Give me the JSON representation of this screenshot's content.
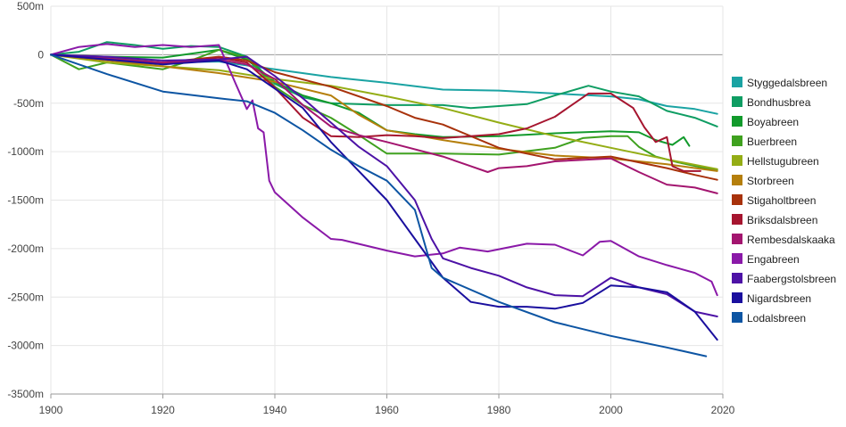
{
  "chart_data": {
    "type": "line",
    "title": "",
    "xlabel": "",
    "ylabel": "",
    "xlim": [
      1900,
      2020
    ],
    "ylim": [
      -3500,
      500
    ],
    "x_ticks": [
      "1900",
      "1920",
      "1940",
      "1960",
      "1980",
      "2000",
      "2020"
    ],
    "y_ticks": [
      "500m",
      "0",
      "-500m",
      "-1000m",
      "-1500m",
      "-2000m",
      "-2500m",
      "-3000m",
      "-3500m"
    ],
    "legend_position": "right",
    "grid": true,
    "series": [
      {
        "name": "Styggedalsbreen",
        "color": "#1aa3a3",
        "points": [
          [
            1900,
            0
          ],
          [
            1910,
            -30
          ],
          [
            1920,
            -80
          ],
          [
            1930,
            -70
          ],
          [
            1940,
            -150
          ],
          [
            1950,
            -230
          ],
          [
            1960,
            -290
          ],
          [
            1970,
            -360
          ],
          [
            1980,
            -370
          ],
          [
            1990,
            -400
          ],
          [
            2000,
            -430
          ],
          [
            2005,
            -460
          ],
          [
            2010,
            -530
          ],
          [
            2015,
            -560
          ],
          [
            2019,
            -610
          ]
        ]
      },
      {
        "name": "Bondhusbrea",
        "color": "#0f9d63",
        "points": [
          [
            1900,
            0
          ],
          [
            1905,
            30
          ],
          [
            1910,
            130
          ],
          [
            1915,
            100
          ],
          [
            1920,
            60
          ],
          [
            1925,
            90
          ],
          [
            1930,
            80
          ],
          [
            1935,
            -20
          ],
          [
            1940,
            -300
          ],
          [
            1945,
            -440
          ],
          [
            1950,
            -500
          ],
          [
            1960,
            -520
          ],
          [
            1970,
            -520
          ],
          [
            1975,
            -550
          ],
          [
            1980,
            -530
          ],
          [
            1985,
            -510
          ],
          [
            1990,
            -420
          ],
          [
            1996,
            -320
          ],
          [
            2000,
            -380
          ],
          [
            2005,
            -430
          ],
          [
            2010,
            -580
          ],
          [
            2015,
            -650
          ],
          [
            2019,
            -740
          ]
        ]
      },
      {
        "name": "Boyabreen",
        "color": "#129a2c",
        "points": [
          [
            1900,
            0
          ],
          [
            1910,
            -20
          ],
          [
            1920,
            -30
          ],
          [
            1930,
            50
          ],
          [
            1935,
            -50
          ],
          [
            1940,
            -280
          ],
          [
            1945,
            -420
          ],
          [
            1950,
            -500
          ],
          [
            1955,
            -600
          ],
          [
            1960,
            -780
          ],
          [
            1965,
            -820
          ],
          [
            1970,
            -850
          ],
          [
            1980,
            -840
          ],
          [
            1990,
            -810
          ],
          [
            2000,
            -790
          ],
          [
            2005,
            -800
          ],
          [
            2008,
            -880
          ],
          [
            2011,
            -930
          ],
          [
            2013,
            -850
          ],
          [
            2014,
            -940
          ]
        ]
      },
      {
        "name": "Buerbreen",
        "color": "#3fa11f",
        "points": [
          [
            1900,
            0
          ],
          [
            1905,
            -150
          ],
          [
            1910,
            -80
          ],
          [
            1920,
            -150
          ],
          [
            1925,
            -60
          ],
          [
            1930,
            50
          ],
          [
            1935,
            -30
          ],
          [
            1940,
            -330
          ],
          [
            1945,
            -520
          ],
          [
            1950,
            -650
          ],
          [
            1955,
            -830
          ],
          [
            1960,
            -1020
          ],
          [
            1970,
            -1020
          ],
          [
            1980,
            -1030
          ],
          [
            1990,
            -960
          ],
          [
            1995,
            -860
          ],
          [
            2000,
            -840
          ],
          [
            2003,
            -840
          ],
          [
            2005,
            -950
          ],
          [
            2008,
            -1050
          ],
          [
            2012,
            -1110
          ],
          [
            2016,
            -1160
          ],
          [
            2019,
            -1190
          ]
        ]
      },
      {
        "name": "Hellstugubreen",
        "color": "#94ad15",
        "points": [
          [
            1900,
            0
          ],
          [
            1910,
            -80
          ],
          [
            1920,
            -120
          ],
          [
            1930,
            -160
          ],
          [
            1940,
            -250
          ],
          [
            1950,
            -320
          ],
          [
            1960,
            -430
          ],
          [
            1970,
            -550
          ],
          [
            1980,
            -700
          ],
          [
            1990,
            -840
          ],
          [
            2000,
            -960
          ],
          [
            2010,
            -1080
          ],
          [
            2019,
            -1180
          ]
        ]
      },
      {
        "name": "Storbreen",
        "color": "#b57f0c",
        "points": [
          [
            1900,
            0
          ],
          [
            1910,
            -60
          ],
          [
            1920,
            -120
          ],
          [
            1930,
            -190
          ],
          [
            1940,
            -280
          ],
          [
            1950,
            -420
          ],
          [
            1955,
            -620
          ],
          [
            1960,
            -780
          ],
          [
            1970,
            -880
          ],
          [
            1980,
            -970
          ],
          [
            1990,
            -1040
          ],
          [
            2000,
            -1070
          ],
          [
            2010,
            -1130
          ],
          [
            2019,
            -1200
          ]
        ]
      },
      {
        "name": "Stigaholtbreen",
        "color": "#a8320b",
        "points": [
          [
            1900,
            0
          ],
          [
            1910,
            -40
          ],
          [
            1920,
            -80
          ],
          [
            1930,
            -20
          ],
          [
            1935,
            -60
          ],
          [
            1940,
            -180
          ],
          [
            1950,
            -330
          ],
          [
            1960,
            -530
          ],
          [
            1965,
            -650
          ],
          [
            1970,
            -720
          ],
          [
            1980,
            -960
          ],
          [
            1990,
            -1080
          ],
          [
            2000,
            -1050
          ],
          [
            2005,
            -1110
          ],
          [
            2010,
            -1170
          ],
          [
            2015,
            -1240
          ],
          [
            2019,
            -1290
          ]
        ]
      },
      {
        "name": "Briksdalsbreen",
        "color": "#a6152f",
        "points": [
          [
            1900,
            0
          ],
          [
            1910,
            -50
          ],
          [
            1920,
            -90
          ],
          [
            1930,
            -30
          ],
          [
            1935,
            -80
          ],
          [
            1940,
            -340
          ],
          [
            1945,
            -650
          ],
          [
            1950,
            -840
          ],
          [
            1955,
            -850
          ],
          [
            1960,
            -830
          ],
          [
            1965,
            -840
          ],
          [
            1970,
            -860
          ],
          [
            1975,
            -840
          ],
          [
            1980,
            -820
          ],
          [
            1985,
            -760
          ],
          [
            1990,
            -640
          ],
          [
            1996,
            -400
          ],
          [
            2000,
            -400
          ],
          [
            2004,
            -550
          ],
          [
            2006,
            -750
          ],
          [
            2008,
            -900
          ],
          [
            2010,
            -850
          ],
          [
            2011,
            -1150
          ],
          [
            2013,
            -1200
          ],
          [
            2016,
            -1200
          ]
        ]
      },
      {
        "name": "Rembesdalskaaka",
        "color": "#a3156f",
        "points": [
          [
            1900,
            0
          ],
          [
            1910,
            -40
          ],
          [
            1920,
            -80
          ],
          [
            1930,
            -50
          ],
          [
            1935,
            -100
          ],
          [
            1940,
            -250
          ],
          [
            1945,
            -520
          ],
          [
            1950,
            -740
          ],
          [
            1955,
            -830
          ],
          [
            1960,
            -900
          ],
          [
            1970,
            -1050
          ],
          [
            1975,
            -1150
          ],
          [
            1978,
            -1210
          ],
          [
            1980,
            -1170
          ],
          [
            1985,
            -1150
          ],
          [
            1990,
            -1100
          ],
          [
            2000,
            -1070
          ],
          [
            2005,
            -1210
          ],
          [
            2010,
            -1340
          ],
          [
            2015,
            -1370
          ],
          [
            2019,
            -1430
          ]
        ]
      },
      {
        "name": "Engabreen",
        "color": "#8a19a8",
        "points": [
          [
            1900,
            0
          ],
          [
            1905,
            80
          ],
          [
            1910,
            110
          ],
          [
            1915,
            80
          ],
          [
            1920,
            100
          ],
          [
            1925,
            80
          ],
          [
            1930,
            100
          ],
          [
            1933,
            -300
          ],
          [
            1935,
            -560
          ],
          [
            1936,
            -470
          ],
          [
            1937,
            -760
          ],
          [
            1938,
            -800
          ],
          [
            1939,
            -1300
          ],
          [
            1940,
            -1420
          ],
          [
            1945,
            -1680
          ],
          [
            1950,
            -1900
          ],
          [
            1952,
            -1910
          ],
          [
            1960,
            -2020
          ],
          [
            1965,
            -2080
          ],
          [
            1970,
            -2050
          ],
          [
            1973,
            -1990
          ],
          [
            1978,
            -2030
          ],
          [
            1985,
            -1950
          ],
          [
            1990,
            -1960
          ],
          [
            1995,
            -2070
          ],
          [
            1998,
            -1930
          ],
          [
            2000,
            -1920
          ],
          [
            2005,
            -2080
          ],
          [
            2010,
            -2170
          ],
          [
            2015,
            -2250
          ],
          [
            2018,
            -2340
          ],
          [
            2019,
            -2480
          ]
        ]
      },
      {
        "name": "Faabergstolsbreen",
        "color": "#4d12a6",
        "points": [
          [
            1900,
            0
          ],
          [
            1910,
            -20
          ],
          [
            1920,
            -60
          ],
          [
            1930,
            -50
          ],
          [
            1935,
            -20
          ],
          [
            1940,
            -220
          ],
          [
            1945,
            -450
          ],
          [
            1950,
            -700
          ],
          [
            1955,
            -950
          ],
          [
            1960,
            -1150
          ],
          [
            1965,
            -1500
          ],
          [
            1968,
            -1900
          ],
          [
            1970,
            -2100
          ],
          [
            1975,
            -2200
          ],
          [
            1980,
            -2280
          ],
          [
            1985,
            -2400
          ],
          [
            1990,
            -2480
          ],
          [
            1995,
            -2490
          ],
          [
            2000,
            -2300
          ],
          [
            2005,
            -2400
          ],
          [
            2010,
            -2470
          ],
          [
            2015,
            -2650
          ],
          [
            2019,
            -2700
          ]
        ]
      },
      {
        "name": "Nigardsbreen",
        "color": "#1a0f9e",
        "points": [
          [
            1900,
            0
          ],
          [
            1910,
            -50
          ],
          [
            1920,
            -100
          ],
          [
            1930,
            -60
          ],
          [
            1935,
            -150
          ],
          [
            1940,
            -350
          ],
          [
            1945,
            -550
          ],
          [
            1950,
            -900
          ],
          [
            1955,
            -1200
          ],
          [
            1960,
            -1500
          ],
          [
            1965,
            -1900
          ],
          [
            1970,
            -2300
          ],
          [
            1975,
            -2550
          ],
          [
            1980,
            -2600
          ],
          [
            1985,
            -2600
          ],
          [
            1990,
            -2620
          ],
          [
            1995,
            -2560
          ],
          [
            2000,
            -2380
          ],
          [
            2005,
            -2400
          ],
          [
            2010,
            -2450
          ],
          [
            2015,
            -2650
          ],
          [
            2019,
            -2940
          ]
        ]
      },
      {
        "name": "Lodalsbreen",
        "color": "#0d55a3",
        "points": [
          [
            1900,
            0
          ],
          [
            1910,
            -200
          ],
          [
            1920,
            -380
          ],
          [
            1930,
            -450
          ],
          [
            1935,
            -480
          ],
          [
            1940,
            -600
          ],
          [
            1945,
            -780
          ],
          [
            1950,
            -980
          ],
          [
            1955,
            -1150
          ],
          [
            1960,
            -1300
          ],
          [
            1965,
            -1600
          ],
          [
            1968,
            -2200
          ],
          [
            1970,
            -2300
          ],
          [
            1980,
            -2550
          ],
          [
            1990,
            -2760
          ],
          [
            2000,
            -2900
          ],
          [
            2010,
            -3020
          ],
          [
            2017,
            -3110
          ]
        ]
      }
    ]
  }
}
